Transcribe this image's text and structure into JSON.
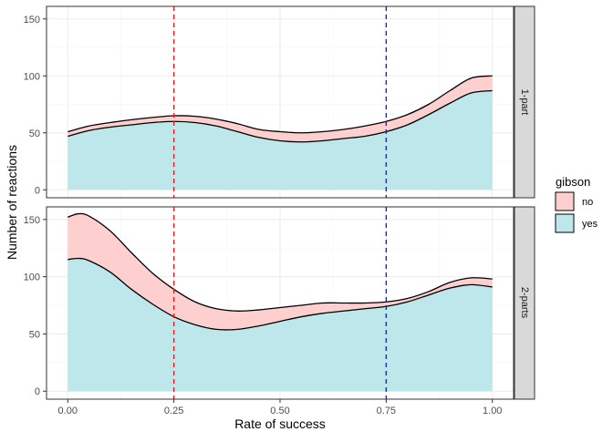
{
  "chart_data": {
    "type": "area",
    "stacked": true,
    "xlabel": "Rate of success",
    "ylabel": "Number of reactions",
    "xlim": [
      -0.05,
      1.05
    ],
    "ylim": [
      -7,
      161
    ],
    "x_ticks": [
      0,
      0.25,
      0.5,
      0.75,
      1
    ],
    "x_tick_labels": [
      "0.00",
      "0.25",
      "0.50",
      "0.75",
      "1.00"
    ],
    "y_ticks": [
      0,
      50,
      100,
      150
    ],
    "y_tick_labels": [
      "0",
      "50",
      "100",
      "150"
    ],
    "grid": true,
    "legend": {
      "title": "gibson",
      "placement": "right",
      "entries": [
        {
          "label": "no",
          "color": "#fdd0cf"
        },
        {
          "label": "yes",
          "color": "#bde7ea"
        }
      ]
    },
    "reference_lines": [
      {
        "x": 0.25,
        "color": "#e41a1c",
        "style": "dashed"
      },
      {
        "x": 0.75,
        "color": "#1f1fd6",
        "style": "dashed"
      }
    ],
    "panels": [
      {
        "strip": "1-part",
        "x": [
          0,
          0.05,
          0.1,
          0.15,
          0.2,
          0.25,
          0.3,
          0.35,
          0.4,
          0.45,
          0.5,
          0.55,
          0.6,
          0.65,
          0.7,
          0.75,
          0.8,
          0.85,
          0.9,
          0.95,
          1
        ],
        "yes": [
          47,
          52,
          55,
          57,
          59,
          60,
          59,
          56,
          51,
          46,
          43,
          42,
          43,
          45,
          47,
          51,
          57,
          66,
          76,
          85,
          87
        ],
        "total": [
          51,
          56,
          59,
          61.5,
          63.5,
          65,
          64.5,
          62,
          58,
          53,
          51,
          50,
          51,
          53,
          56,
          60,
          66,
          75,
          87,
          98,
          100
        ]
      },
      {
        "strip": "2-parts",
        "x": [
          0,
          0.025,
          0.05,
          0.1,
          0.15,
          0.2,
          0.25,
          0.3,
          0.35,
          0.4,
          0.45,
          0.5,
          0.55,
          0.6,
          0.65,
          0.7,
          0.75,
          0.8,
          0.85,
          0.9,
          0.95,
          1
        ],
        "yes": [
          115,
          116,
          114,
          104,
          89,
          76,
          65,
          58,
          54,
          54,
          57,
          61,
          65,
          68,
          70,
          72,
          74,
          78,
          84,
          90,
          93,
          91
        ],
        "total": [
          152,
          155,
          153,
          140,
          121,
          103,
          89,
          78,
          72,
          70,
          71,
          73,
          75,
          77,
          77,
          77,
          78,
          81,
          87,
          95,
          99,
          98
        ]
      }
    ]
  }
}
